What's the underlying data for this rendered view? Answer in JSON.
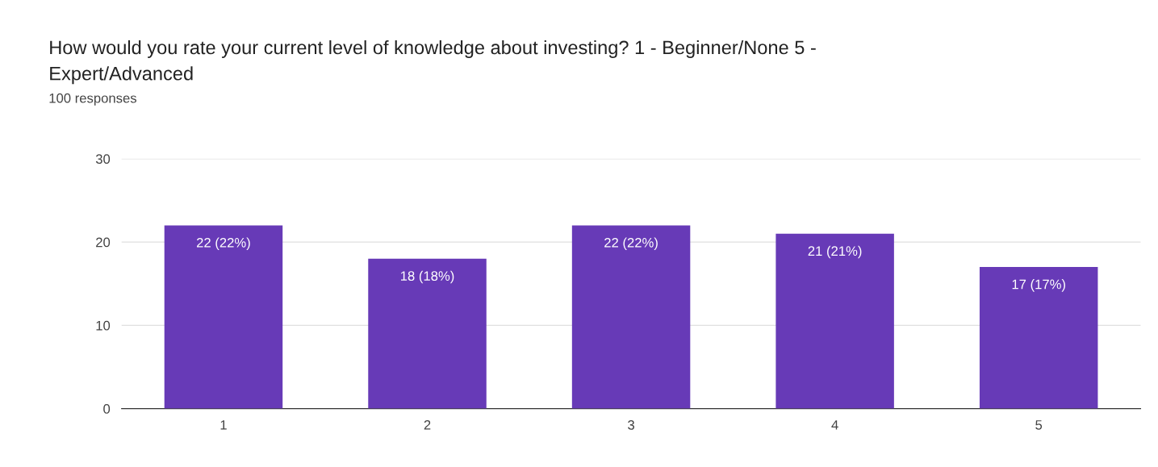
{
  "chart_data": {
    "type": "bar",
    "title": "How would you rate your current level of knowledge about investing? 1 - Beginner/None 5 -\nExpert/Advanced",
    "subtitle": "100 responses",
    "categories": [
      "1",
      "2",
      "3",
      "4",
      "5"
    ],
    "values": [
      22,
      18,
      22,
      21,
      17
    ],
    "value_labels": [
      "22 (22%)",
      "18 (18%)",
      "22 (22%)",
      "21 (21%)",
      "17 (17%)"
    ],
    "color": "#673ab7",
    "ylim": [
      0,
      30
    ],
    "yticks": [
      0,
      10,
      20,
      30
    ],
    "grid": "y"
  }
}
